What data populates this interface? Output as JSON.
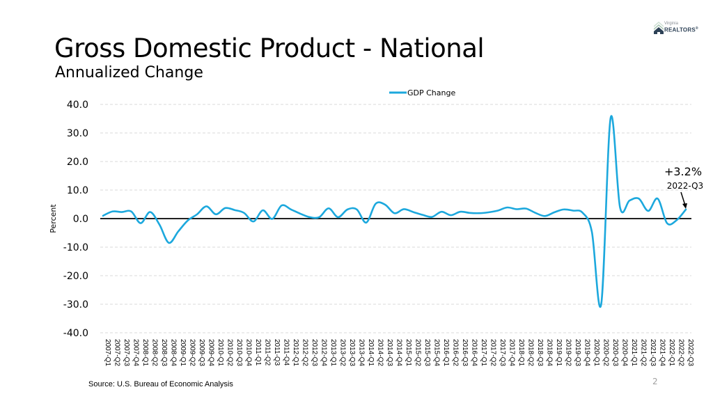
{
  "slide": {
    "title": "Gross Domestic Product - National",
    "subtitle": "Annualized Change",
    "logo": {
      "line1": "Virginia",
      "line2": "REALTORS",
      "mark": "®"
    },
    "source": "Source: U.S. Bureau of Economic Analysis",
    "page_number": "2"
  },
  "colors": {
    "series": "#1ca8dd",
    "zero_line": "#000000",
    "grid": "#d9d9d9",
    "logo_dark": "#2e4257",
    "logo_light": "#a9c6b3"
  },
  "chart_data": {
    "type": "line",
    "title": "Gross Domestic Product - National",
    "subtitle": "Annualized Change",
    "xlabel": "",
    "ylabel": "Percent",
    "ylim": [
      -40,
      40
    ],
    "yticks": [
      40,
      30,
      20,
      10,
      0,
      -10,
      -20,
      -30,
      -40
    ],
    "ytick_labels": [
      "40.0",
      "30.0",
      "20.0",
      "10.0",
      "0.0",
      "-10.0",
      "-20.0",
      "-30.0",
      "-40.0"
    ],
    "grid": true,
    "legend": {
      "position": "top-center",
      "entries": [
        "GDP Change"
      ]
    },
    "categories": [
      "2007-Q1",
      "2007-Q2",
      "2007-Q3",
      "2007-Q4",
      "2008-Q1",
      "2008-Q2",
      "2008-Q3",
      "2008-Q4",
      "2009-Q1",
      "2009-Q2",
      "2009-Q3",
      "2009-Q4",
      "2010-Q1",
      "2010-Q2",
      "2010-Q3",
      "2010-Q4",
      "2011-Q1",
      "2011-Q2",
      "2011-Q3",
      "2011-Q4",
      "2012-Q1",
      "2012-Q2",
      "2012-Q3",
      "2012-Q4",
      "2013-Q1",
      "2013-Q2",
      "2013-Q3",
      "2013-Q4",
      "2014-Q1",
      "2014-Q2",
      "2014-Q3",
      "2014-Q4",
      "2015-Q1",
      "2015-Q2",
      "2015-Q3",
      "2015-Q4",
      "2016-Q1",
      "2016-Q2",
      "2016-Q3",
      "2016-Q4",
      "2017-Q1",
      "2017-Q2",
      "2017-Q3",
      "2017-Q4",
      "2018-Q1",
      "2018-Q2",
      "2018-Q3",
      "2018-Q4",
      "2019-Q1",
      "2019-Q2",
      "2019-Q3",
      "2019-Q4",
      "2020-Q1",
      "2020-Q2",
      "2020-Q3",
      "2020-Q4",
      "2021-Q1",
      "2021-Q2",
      "2021-Q3",
      "2021-Q4",
      "2022-Q1",
      "2022-Q2",
      "2022-Q3"
    ],
    "series": [
      {
        "name": "GDP Change",
        "values": [
          1.0,
          2.5,
          2.3,
          2.5,
          -1.6,
          2.3,
          -2.1,
          -8.5,
          -4.5,
          -0.7,
          1.5,
          4.3,
          1.5,
          3.7,
          3.0,
          2.0,
          -1.0,
          2.9,
          -0.1,
          4.6,
          3.2,
          1.7,
          0.5,
          0.5,
          3.6,
          0.5,
          3.2,
          3.2,
          -1.4,
          5.2,
          4.9,
          1.9,
          3.3,
          2.3,
          1.3,
          0.6,
          2.4,
          1.2,
          2.4,
          2.0,
          1.9,
          2.2,
          2.8,
          3.9,
          3.3,
          3.5,
          2.0,
          0.9,
          2.2,
          3.2,
          2.8,
          2.1,
          -4.6,
          -29.9,
          35.3,
          3.9,
          6.3,
          7.0,
          2.7,
          7.0,
          -1.6,
          -0.6,
          3.2
        ]
      }
    ],
    "annotations": [
      {
        "text": "+3.2%",
        "subtext": "2022-Q3",
        "target": "2022-Q3",
        "value": 3.2,
        "arrow": true
      }
    ]
  }
}
